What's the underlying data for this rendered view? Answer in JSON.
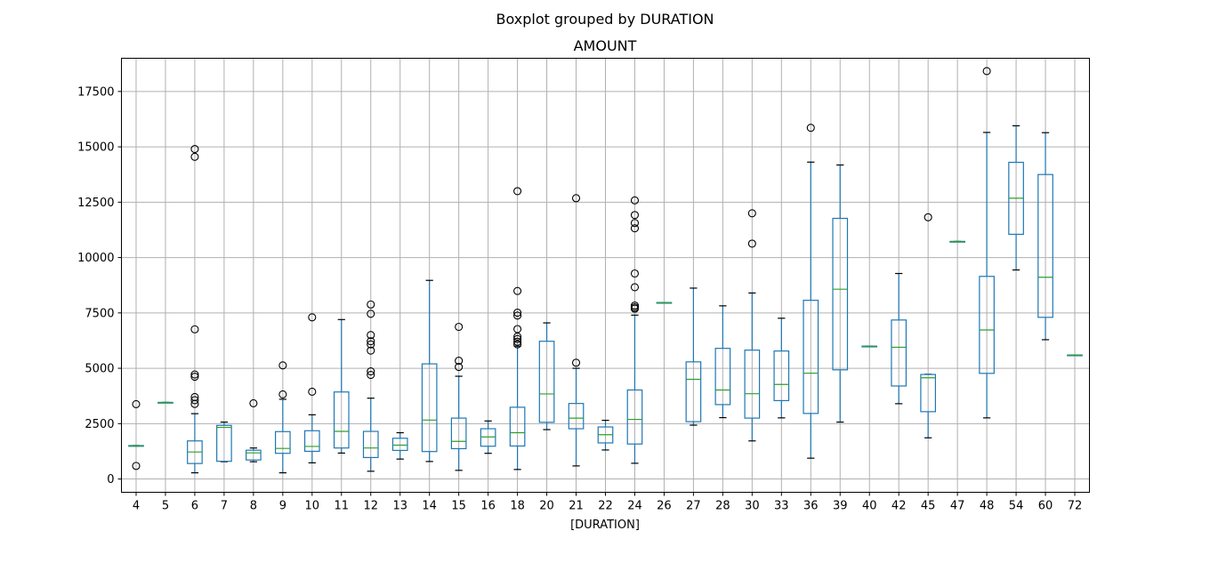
{
  "chart_data": {
    "type": "boxplot",
    "suptitle": "Boxplot grouped by DURATION",
    "title": "AMOUNT",
    "xlabel": "[DURATION]",
    "ylabel": "",
    "ylim": [
      -600,
      19000
    ],
    "yticks": [
      0,
      2500,
      5000,
      7500,
      10000,
      12500,
      15000,
      17500
    ],
    "grid": true,
    "colors": {
      "box": "#1f77b4",
      "median": "#2ca02c",
      "cap": "#000000",
      "flier": "#000000",
      "grid": "#b0b0b0"
    },
    "categories": [
      "4",
      "5",
      "6",
      "7",
      "8",
      "9",
      "10",
      "11",
      "12",
      "13",
      "14",
      "15",
      "16",
      "18",
      "20",
      "21",
      "22",
      "24",
      "26",
      "27",
      "28",
      "30",
      "33",
      "36",
      "39",
      "40",
      "42",
      "45",
      "47",
      "48",
      "54",
      "60",
      "72"
    ],
    "boxes": [
      {
        "label": "4",
        "lo": 1490,
        "q1": 1490,
        "med": 1490,
        "q3": 1510,
        "hi": 1510,
        "fliers": [
          3380,
          590
        ]
      },
      {
        "label": "5",
        "lo": 3440,
        "q1": 3440,
        "med": 3440,
        "q3": 3460,
        "hi": 3460,
        "fliers": []
      },
      {
        "label": "6",
        "lo": 280,
        "q1": 700,
        "med": 1220,
        "q3": 1720,
        "hi": 2950,
        "fliers": [
          14900,
          14550,
          6760,
          4720,
          4620,
          3700,
          3560,
          3390
        ]
      },
      {
        "label": "7",
        "lo": 780,
        "q1": 800,
        "med": 2330,
        "q3": 2420,
        "hi": 2570,
        "fliers": []
      },
      {
        "label": "8",
        "lo": 780,
        "q1": 860,
        "med": 1180,
        "q3": 1300,
        "hi": 1400,
        "fliers": [
          3420
        ]
      },
      {
        "label": "9",
        "lo": 280,
        "q1": 1160,
        "med": 1380,
        "q3": 2140,
        "hi": 3600,
        "fliers": [
          5130,
          3820
        ]
      },
      {
        "label": "10",
        "lo": 730,
        "q1": 1250,
        "med": 1470,
        "q3": 2180,
        "hi": 2900,
        "fliers": [
          7300,
          3940
        ]
      },
      {
        "label": "11",
        "lo": 1170,
        "q1": 1400,
        "med": 2150,
        "q3": 3930,
        "hi": 7200,
        "fliers": []
      },
      {
        "label": "12",
        "lo": 350,
        "q1": 970,
        "med": 1400,
        "q3": 2150,
        "hi": 3650,
        "fliers": [
          7880,
          7460,
          6500,
          6220,
          6080,
          5800,
          4860,
          4700
        ]
      },
      {
        "label": "13",
        "lo": 900,
        "q1": 1290,
        "med": 1530,
        "q3": 1840,
        "hi": 2090,
        "fliers": []
      },
      {
        "label": "14",
        "lo": 790,
        "q1": 1240,
        "med": 2660,
        "q3": 5200,
        "hi": 8970,
        "fliers": []
      },
      {
        "label": "15",
        "lo": 390,
        "q1": 1370,
        "med": 1700,
        "q3": 2750,
        "hi": 4640,
        "fliers": [
          6870,
          5340,
          5060
        ]
      },
      {
        "label": "16",
        "lo": 1160,
        "q1": 1480,
        "med": 1900,
        "q3": 2270,
        "hi": 2620,
        "fliers": []
      },
      {
        "label": "18",
        "lo": 430,
        "q1": 1490,
        "med": 2090,
        "q3": 3240,
        "hi": 6000,
        "fliers": [
          13000,
          8490,
          7510,
          7380,
          6770,
          6430,
          6320,
          6200,
          6080
        ]
      },
      {
        "label": "20",
        "lo": 2230,
        "q1": 2560,
        "med": 3840,
        "q3": 6220,
        "hi": 7050,
        "fliers": []
      },
      {
        "label": "21",
        "lo": 590,
        "q1": 2270,
        "med": 2750,
        "q3": 3410,
        "hi": 5000,
        "fliers": [
          12680,
          5250
        ]
      },
      {
        "label": "22",
        "lo": 1310,
        "q1": 1630,
        "med": 2000,
        "q3": 2350,
        "hi": 2650,
        "fliers": []
      },
      {
        "label": "24",
        "lo": 710,
        "q1": 1580,
        "med": 2690,
        "q3": 4020,
        "hi": 7400,
        "fliers": [
          12580,
          11920,
          11560,
          11320,
          9280,
          8660,
          7830,
          7750,
          7690
        ]
      },
      {
        "label": "26",
        "lo": 7960,
        "q1": 7960,
        "med": 7960,
        "q3": 7970,
        "hi": 7970,
        "fliers": []
      },
      {
        "label": "27",
        "lo": 2430,
        "q1": 2590,
        "med": 4500,
        "q3": 5290,
        "hi": 8620,
        "fliers": []
      },
      {
        "label": "28",
        "lo": 2770,
        "q1": 3360,
        "med": 4020,
        "q3": 5900,
        "hi": 7820,
        "fliers": []
      },
      {
        "label": "30",
        "lo": 1720,
        "q1": 2750,
        "med": 3850,
        "q3": 5820,
        "hi": 8400,
        "fliers": [
          12000,
          10630
        ]
      },
      {
        "label": "33",
        "lo": 2760,
        "q1": 3540,
        "med": 4270,
        "q3": 5780,
        "hi": 7260,
        "fliers": []
      },
      {
        "label": "36",
        "lo": 940,
        "q1": 2960,
        "med": 4780,
        "q3": 8070,
        "hi": 14310,
        "fliers": [
          15860
        ]
      },
      {
        "label": "39",
        "lo": 2570,
        "q1": 4930,
        "med": 8570,
        "q3": 11770,
        "hi": 14180,
        "fliers": []
      },
      {
        "label": "40",
        "lo": 5990,
        "q1": 5990,
        "med": 5990,
        "q3": 6000,
        "hi": 6000,
        "fliers": []
      },
      {
        "label": "42",
        "lo": 3400,
        "q1": 4200,
        "med": 5950,
        "q3": 7180,
        "hi": 9280,
        "fliers": []
      },
      {
        "label": "45",
        "lo": 1860,
        "q1": 3040,
        "med": 4570,
        "q3": 4720,
        "hi": 4730,
        "fliers": [
          11820
        ]
      },
      {
        "label": "47",
        "lo": 10720,
        "q1": 10720,
        "med": 10720,
        "q3": 10730,
        "hi": 10730,
        "fliers": []
      },
      {
        "label": "48",
        "lo": 2760,
        "q1": 4770,
        "med": 6730,
        "q3": 9150,
        "hi": 15650,
        "fliers": [
          18420
        ]
      },
      {
        "label": "54",
        "lo": 9440,
        "q1": 11050,
        "med": 12680,
        "q3": 14300,
        "hi": 15950,
        "fliers": []
      },
      {
        "label": "60",
        "lo": 6290,
        "q1": 7300,
        "med": 9110,
        "q3": 13750,
        "hi": 15640,
        "fliers": []
      },
      {
        "label": "72",
        "lo": 5590,
        "q1": 5590,
        "med": 5590,
        "q3": 5600,
        "hi": 5600,
        "fliers": []
      }
    ]
  }
}
